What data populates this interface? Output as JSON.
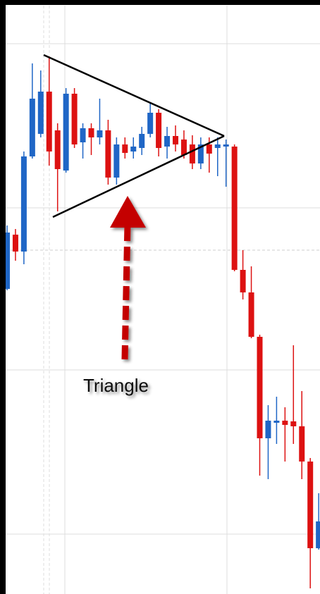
{
  "chart_data": {
    "type": "candlestick",
    "annotation": "Triangle",
    "up_color": "#1f66c6",
    "down_color": "#dd1111",
    "open": [
      43.3,
      51.0,
      48.6,
      62.1,
      65.3,
      71.3,
      65.8,
      60.1,
      71.0,
      64.1,
      66.1,
      64.8,
      65.8,
      59.1,
      63.8,
      62.8,
      63.3,
      65.3,
      68.3,
      63.5,
      65.0,
      64.5,
      63.8,
      61.1,
      63.8,
      63.3,
      63.5,
      63.5,
      46.0,
      42.8,
      36.5,
      22.1,
      24.3,
      24.6,
      24.5,
      23.8,
      18.8,
      6.5
    ],
    "high": [
      52.3,
      51.8,
      62.8,
      75.3,
      74.3,
      76.3,
      66.8,
      71.8,
      71.8,
      66.8,
      66.8,
      70.3,
      67.3,
      64.8,
      64.8,
      64.8,
      66.3,
      69.8,
      68.8,
      66.3,
      66.5,
      65.8,
      65.1,
      64.8,
      64.8,
      64.8,
      64.5,
      63.8,
      48.8,
      46.5,
      36.8,
      26.8,
      28.0,
      26.5,
      35.3,
      28.8,
      19.3,
      14.3
    ],
    "low": [
      43.1,
      47.3,
      46.8,
      61.8,
      64.8,
      60.8,
      54.3,
      59.8,
      63.3,
      61.8,
      62.3,
      63.8,
      58.1,
      58.1,
      61.8,
      61.8,
      62.3,
      64.8,
      62.1,
      61.8,
      62.8,
      61.8,
      60.3,
      60.3,
      59.8,
      59.3,
      57.8,
      45.8,
      41.8,
      36.3,
      16.8,
      16.3,
      21.3,
      18.8,
      21.3,
      16.3,
      0.8,
      6.3
    ],
    "close": [
      51.3,
      48.6,
      62.1,
      70.3,
      71.3,
      62.8,
      60.3,
      71.0,
      63.8,
      66.1,
      64.8,
      65.8,
      59.1,
      63.8,
      62.6,
      63.5,
      65.3,
      68.3,
      63.3,
      65.0,
      63.8,
      62.3,
      61.1,
      63.8,
      62.5,
      63.8,
      63.8,
      46.0,
      42.8,
      36.5,
      22.1,
      24.6,
      24.6,
      24.0,
      23.8,
      18.8,
      6.5,
      10.3
    ],
    "ylim": [
      0,
      84.3
    ],
    "yticks": [
      78.1,
      54.8,
      31.8,
      8.5
    ],
    "grid": true
  }
}
